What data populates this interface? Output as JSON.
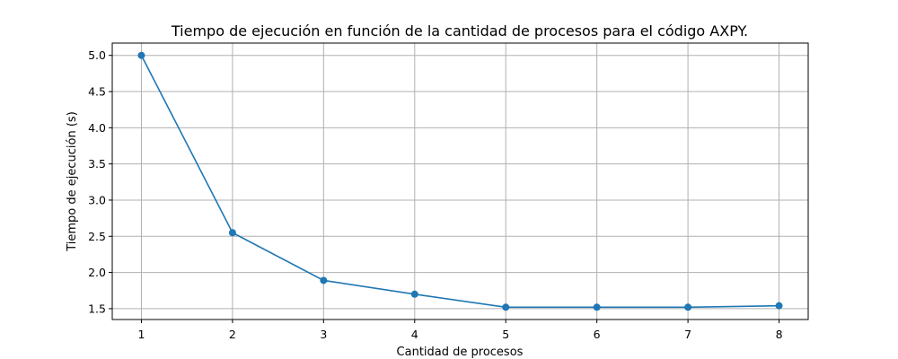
{
  "chart_data": {
    "type": "line",
    "title": "Tiempo de ejecución en función de la cantidad de procesos para el código AXPY.",
    "xlabel": "Cantidad de procesos",
    "ylabel": "Tiempo de ejecución (s)",
    "x": [
      1,
      2,
      3,
      4,
      5,
      6,
      7,
      8
    ],
    "series": [
      {
        "values": [
          5.0,
          2.55,
          1.89,
          1.7,
          1.52,
          1.52,
          1.52,
          1.54
        ]
      }
    ],
    "xlim": [
      0.68,
      8.32
    ],
    "ylim": [
      1.35,
      5.17
    ],
    "xticks": [
      "1",
      "2",
      "3",
      "4",
      "5",
      "6",
      "7",
      "8"
    ],
    "yticks": [
      "1.5",
      "2.0",
      "2.5",
      "3.0",
      "3.5",
      "4.0",
      "4.5",
      "5.0"
    ],
    "grid": true,
    "marker": "circle",
    "color": "#1f77b4"
  }
}
